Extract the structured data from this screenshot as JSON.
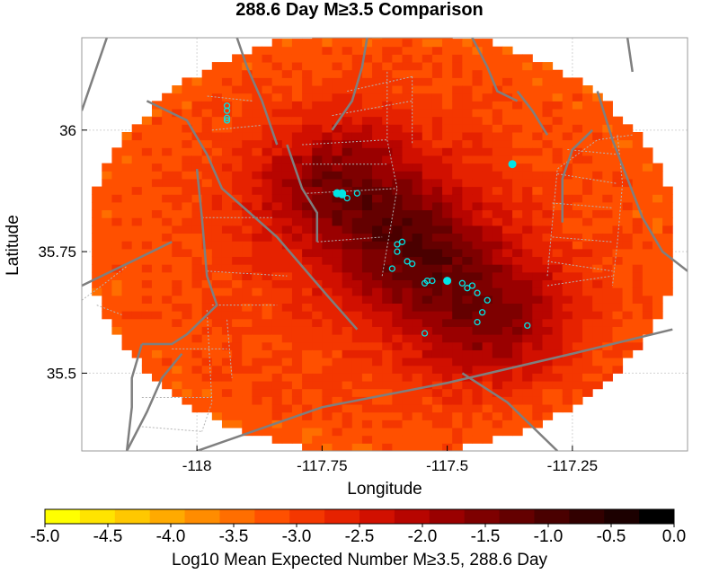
{
  "chart_data": {
    "type": "heatmap",
    "title": "288.6 Day M≥3.5 Comparison",
    "xlabel": "Longitude",
    "ylabel": "Latitude",
    "xlim": [
      -118.23,
      -117.02
    ],
    "ylim": [
      35.34,
      36.19
    ],
    "x_ticks": [
      {
        "value": -118,
        "label": "-118"
      },
      {
        "value": -117.75,
        "label": "-117.75"
      },
      {
        "value": -117.5,
        "label": "-117.5"
      },
      {
        "value": -117.25,
        "label": "-117.25"
      }
    ],
    "y_ticks": [
      {
        "value": 36,
        "label": "36"
      },
      {
        "value": 35.75,
        "label": "35.75"
      },
      {
        "value": 35.5,
        "label": "35.5"
      }
    ],
    "grid": true,
    "colorbar": {
      "label": "Log10 Mean Expected Number M≥3.5, 288.6 Day",
      "min": -5.0,
      "max": 0.0,
      "ticks": [
        "-5.0",
        "-4.5",
        "-4.0",
        "-3.5",
        "-3.0",
        "-2.5",
        "-2.0",
        "-1.5",
        "-1.0",
        "-0.5",
        "0.0"
      ],
      "colors": [
        "#ffff00",
        "#ffe400",
        "#ffc800",
        "#ffaa00",
        "#ff8c00",
        "#ff6e00",
        "#ff5000",
        "#f43700",
        "#e62200",
        "#d11000",
        "#b70500",
        "#9a0000",
        "#7e0000",
        "#640000",
        "#4a0000",
        "#320000",
        "#1c0000",
        "#000000"
      ]
    },
    "footprint": {
      "center_lon": -117.63,
      "center_lat": 35.77,
      "radius_lon": 0.59,
      "radius_lat": 0.44
    },
    "hot_ridge": {
      "start": [
        -117.7,
        35.88
      ],
      "end": [
        -117.42,
        35.62
      ],
      "peak_value": -1.05,
      "ridge_width_deg": 0.12
    },
    "background_value": -2.9,
    "edge_value": -3.2,
    "events_large": [
      {
        "lon": -117.71,
        "lat": 35.87
      },
      {
        "lon": -117.72,
        "lat": 35.87
      },
      {
        "lon": -117.71,
        "lat": 35.868
      },
      {
        "lon": -117.5,
        "lat": 35.69
      },
      {
        "lon": -117.37,
        "lat": 35.93
      }
    ],
    "events_small": [
      {
        "lon": -117.94,
        "lat": 36.05
      },
      {
        "lon": -117.94,
        "lat": 36.04
      },
      {
        "lon": -117.94,
        "lat": 36.025
      },
      {
        "lon": -117.94,
        "lat": 36.02
      },
      {
        "lon": -117.7,
        "lat": 35.86
      },
      {
        "lon": -117.68,
        "lat": 35.87
      },
      {
        "lon": -117.59,
        "lat": 35.77
      },
      {
        "lon": -117.6,
        "lat": 35.765
      },
      {
        "lon": -117.6,
        "lat": 35.75
      },
      {
        "lon": -117.58,
        "lat": 35.73
      },
      {
        "lon": -117.57,
        "lat": 35.725
      },
      {
        "lon": -117.61,
        "lat": 35.715
      },
      {
        "lon": -117.54,
        "lat": 35.69
      },
      {
        "lon": -117.545,
        "lat": 35.685
      },
      {
        "lon": -117.53,
        "lat": 35.69
      },
      {
        "lon": -117.47,
        "lat": 35.685
      },
      {
        "lon": -117.46,
        "lat": 35.675
      },
      {
        "lon": -117.45,
        "lat": 35.68
      },
      {
        "lon": -117.44,
        "lat": 35.665
      },
      {
        "lon": -117.42,
        "lat": 35.65
      },
      {
        "lon": -117.43,
        "lat": 35.625
      },
      {
        "lon": -117.44,
        "lat": 35.605
      },
      {
        "lon": -117.34,
        "lat": 35.598
      },
      {
        "lon": -117.545,
        "lat": 35.582
      }
    ],
    "faults": [
      [
        [
          -118.18,
          36.19
        ],
        [
          -118.21,
          36.1
        ],
        [
          -118.23,
          36.04
        ]
      ],
      [
        [
          -117.92,
          36.19
        ],
        [
          -117.9,
          36.13
        ],
        [
          -117.87,
          36.06
        ],
        [
          -117.84,
          35.97
        ]
      ],
      [
        [
          -118.1,
          36.06
        ],
        [
          -118.02,
          36.02
        ],
        [
          -117.98,
          35.95
        ],
        [
          -117.95,
          35.88
        ],
        [
          -117.84,
          35.78
        ],
        [
          -117.74,
          35.66
        ],
        [
          -117.68,
          35.59
        ]
      ],
      [
        [
          -118.23,
          35.68
        ],
        [
          -118.13,
          35.73
        ],
        [
          -118.05,
          35.77
        ]
      ],
      [
        [
          -118.0,
          35.92
        ],
        [
          -117.99,
          35.82
        ],
        [
          -117.98,
          35.7
        ],
        [
          -117.96,
          35.64
        ],
        [
          -118.02,
          35.58
        ],
        [
          -118.05,
          35.56
        ],
        [
          -118.11,
          35.56
        ]
      ],
      [
        [
          -118.11,
          35.56
        ],
        [
          -118.13,
          35.49
        ],
        [
          -118.13,
          35.43
        ],
        [
          -118.14,
          35.34
        ]
      ],
      [
        [
          -117.82,
          35.97
        ],
        [
          -117.79,
          35.88
        ],
        [
          -117.76,
          35.83
        ],
        [
          -117.76,
          35.77
        ]
      ],
      [
        [
          -117.66,
          36.19
        ],
        [
          -117.67,
          36.13
        ],
        [
          -117.69,
          36.06
        ],
        [
          -117.73,
          36.0
        ]
      ],
      [
        [
          -117.45,
          36.19
        ],
        [
          -117.42,
          36.13
        ],
        [
          -117.4,
          36.08
        ],
        [
          -117.36,
          36.06
        ]
      ],
      [
        [
          -117.36,
          36.08
        ],
        [
          -117.33,
          36.04
        ],
        [
          -117.3,
          35.99
        ]
      ],
      [
        [
          -117.14,
          36.19
        ],
        [
          -117.13,
          36.12
        ]
      ],
      [
        [
          -117.2,
          36.08
        ],
        [
          -117.17,
          35.98
        ],
        [
          -117.14,
          35.9
        ],
        [
          -117.11,
          35.82
        ],
        [
          -117.07,
          35.75
        ],
        [
          -117.02,
          35.71
        ]
      ],
      [
        [
          -118.0,
          35.34
        ],
        [
          -117.75,
          35.43
        ],
        [
          -117.5,
          35.48
        ],
        [
          -117.25,
          35.54
        ],
        [
          -117.05,
          35.59
        ]
      ],
      [
        [
          -117.47,
          35.5
        ],
        [
          -117.38,
          35.44
        ],
        [
          -117.32,
          35.38
        ],
        [
          -117.28,
          35.34
        ]
      ],
      [
        [
          -117.27,
          35.81
        ],
        [
          -117.27,
          35.9
        ],
        [
          -117.25,
          35.96
        ],
        [
          -117.21,
          36.0
        ]
      ],
      [
        [
          -118.14,
          35.34
        ],
        [
          -118.1,
          35.42
        ],
        [
          -118.07,
          35.49
        ],
        [
          -118.03,
          35.54
        ]
      ]
    ],
    "minor_faults": [
      [
        [
          -118.23,
          35.65
        ],
        [
          -118.19,
          35.68
        ],
        [
          -118.14,
          35.72
        ]
      ],
      [
        [
          -118.2,
          35.64
        ],
        [
          -118.15,
          35.62
        ]
      ],
      [
        [
          -118.05,
          35.55
        ],
        [
          -117.94,
          35.55
        ]
      ],
      [
        [
          -118.11,
          35.45
        ],
        [
          -117.97,
          35.45
        ]
      ],
      [
        [
          -118.11,
          35.39
        ],
        [
          -117.99,
          35.38
        ]
      ],
      [
        [
          -117.99,
          35.82
        ],
        [
          -117.85,
          35.82
        ]
      ],
      [
        [
          -117.98,
          35.71
        ],
        [
          -117.82,
          35.7
        ]
      ],
      [
        [
          -117.78,
          35.87
        ],
        [
          -117.6,
          35.88
        ]
      ],
      [
        [
          -117.79,
          35.97
        ],
        [
          -117.62,
          35.98
        ]
      ],
      [
        [
          -117.79,
          35.93
        ],
        [
          -117.62,
          35.93
        ]
      ],
      [
        [
          -117.76,
          35.77
        ],
        [
          -117.63,
          35.78
        ]
      ],
      [
        [
          -117.7,
          36.08
        ],
        [
          -117.57,
          36.11
        ]
      ],
      [
        [
          -117.73,
          36.03
        ],
        [
          -117.57,
          36.06
        ]
      ],
      [
        [
          -117.62,
          36.12
        ],
        [
          -117.62,
          35.98
        ],
        [
          -117.6,
          35.88
        ],
        [
          -117.62,
          35.76
        ],
        [
          -117.63,
          35.7
        ]
      ],
      [
        [
          -117.57,
          36.11
        ],
        [
          -117.57,
          35.97
        ]
      ],
      [
        [
          -117.29,
          35.78
        ],
        [
          -117.17,
          35.77
        ]
      ],
      [
        [
          -117.29,
          35.85
        ],
        [
          -117.17,
          35.84
        ]
      ],
      [
        [
          -117.28,
          35.91
        ],
        [
          -117.16,
          35.89
        ]
      ],
      [
        [
          -117.26,
          35.96
        ],
        [
          -117.16,
          35.95
        ]
      ],
      [
        [
          -117.3,
          35.73
        ],
        [
          -117.17,
          35.71
        ]
      ],
      [
        [
          -117.3,
          35.7
        ],
        [
          -117.29,
          35.81
        ],
        [
          -117.28,
          35.92
        ],
        [
          -117.2,
          35.98
        ],
        [
          -117.13,
          35.99
        ]
      ],
      [
        [
          -117.16,
          35.99
        ],
        [
          -117.15,
          35.89
        ],
        [
          -117.16,
          35.77
        ],
        [
          -117.17,
          35.68
        ]
      ],
      [
        [
          -117.3,
          35.68
        ],
        [
          -117.17,
          35.7
        ]
      ],
      [
        [
          -117.89,
          36.06
        ],
        [
          -117.98,
          36.07
        ]
      ],
      [
        [
          -117.97,
          35.64
        ],
        [
          -117.84,
          35.64
        ]
      ],
      [
        [
          -117.97,
          36.0
        ],
        [
          -117.87,
          36.01
        ]
      ],
      [
        [
          -117.98,
          35.63
        ],
        [
          -117.97,
          35.44
        ],
        [
          -117.99,
          35.38
        ]
      ],
      [
        [
          -117.94,
          35.61
        ],
        [
          -117.93,
          35.49
        ]
      ]
    ]
  }
}
